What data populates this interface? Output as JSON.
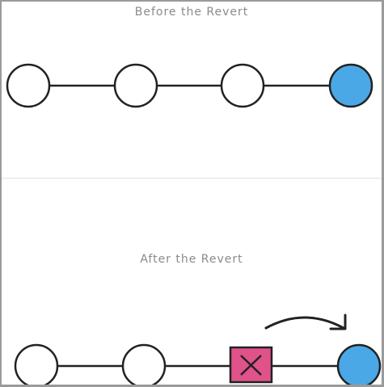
{
  "before": {
    "title": "Before the Revert",
    "commits": [
      {
        "state": "normal"
      },
      {
        "state": "normal"
      },
      {
        "state": "normal"
      },
      {
        "state": "head"
      }
    ]
  },
  "after": {
    "title": "After the Revert",
    "commits": [
      {
        "state": "normal"
      },
      {
        "state": "normal"
      },
      {
        "state": "reverted"
      },
      {
        "state": "head"
      }
    ],
    "arrow": "curved-arrow-right"
  },
  "colors": {
    "stroke": "#222222",
    "head_fill": "#4aa8e6",
    "reverted_fill": "#e0528a",
    "caption": "#8a8a8a"
  }
}
